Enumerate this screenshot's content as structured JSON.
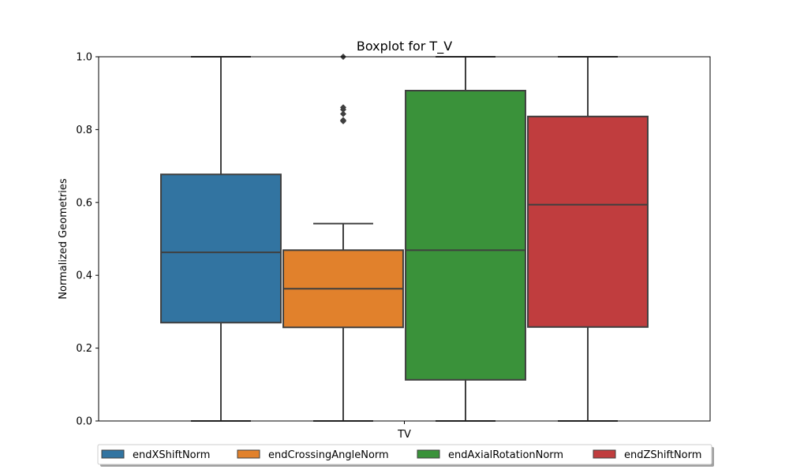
{
  "chart_data": {
    "type": "boxplot",
    "title": "Boxplot for T_V",
    "xlabel": "",
    "ylabel": "Normalized Geometries",
    "categories": [
      "TV"
    ],
    "ylim": [
      0.0,
      1.0
    ],
    "yticks": [
      "0.0",
      "0.2",
      "0.4",
      "0.6",
      "0.8",
      "1.0"
    ],
    "grid": false,
    "legend_position": "bottom-center",
    "series": [
      {
        "name": "endXShiftNorm",
        "color": "#3274a1",
        "whisker_low": 0.0,
        "q1": 0.27,
        "median": 0.463,
        "q3": 0.677,
        "whisker_high": 1.0,
        "outliers": []
      },
      {
        "name": "endCrossingAngleNorm",
        "color": "#e1812c",
        "whisker_low": 0.0,
        "q1": 0.257,
        "median": 0.363,
        "q3": 0.469,
        "whisker_high": 0.542,
        "outliers": [
          0.823,
          0.826,
          0.843,
          0.855,
          0.861,
          1.0
        ]
      },
      {
        "name": "endAxialRotationNorm",
        "color": "#3a923a",
        "whisker_low": 0.0,
        "q1": 0.113,
        "median": 0.469,
        "q3": 0.907,
        "whisker_high": 1.0,
        "outliers": []
      },
      {
        "name": "endZShiftNorm",
        "color": "#c03d3e",
        "whisker_low": 0.0,
        "q1": 0.258,
        "median": 0.594,
        "q3": 0.836,
        "whisker_high": 1.0,
        "outliers": []
      }
    ]
  }
}
